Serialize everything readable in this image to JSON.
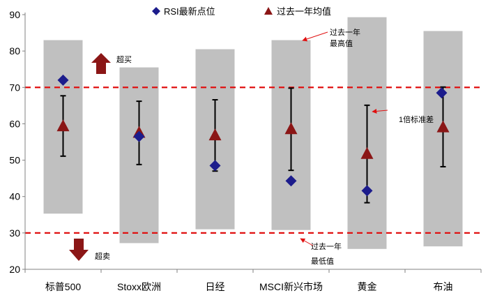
{
  "chart_data": {
    "type": "range-dot",
    "ylim": [
      20,
      90
    ],
    "yticks": [
      20,
      30,
      40,
      50,
      60,
      70,
      80,
      90
    ],
    "categories": [
      "标普500",
      "Stoxx欧洲",
      "日经",
      "MSCI新兴市场",
      "黄金",
      "布油"
    ],
    "range_high": [
      83,
      75.5,
      80.5,
      83,
      89.3,
      85.5
    ],
    "range_low": [
      35.3,
      27.2,
      31,
      30.8,
      25.6,
      26.3
    ],
    "rsi_latest": [
      72,
      56.5,
      48.5,
      44.3,
      41.6,
      68.5
    ],
    "avg_1y": [
      59.3,
      57.5,
      56.8,
      58.5,
      51.7,
      59
    ],
    "std_upper": [
      67.7,
      66.2,
      66.6,
      69.8,
      65.1,
      70.1
    ],
    "std_lower": [
      51.1,
      48.8,
      47,
      47.2,
      38.3,
      48.2
    ],
    "threshold_high": 70,
    "threshold_low": 30,
    "legend": {
      "rsi_label": "RSI最新点位",
      "avg_label": "过去一年均值"
    },
    "annotations": {
      "overbought": "超买",
      "oversold": "超卖",
      "high_1": "过去一年",
      "high_2": "最高值",
      "low_1": "过去一年",
      "low_2": "最低值",
      "std": "1倍标准差"
    },
    "colors": {
      "range_bar": "#c0c0c0",
      "rsi_marker": "#1c1c8c",
      "avg_marker": "#8b1616",
      "threshold_line": "#e01010",
      "arrow": "#8b1616",
      "axis": "#808080"
    }
  }
}
